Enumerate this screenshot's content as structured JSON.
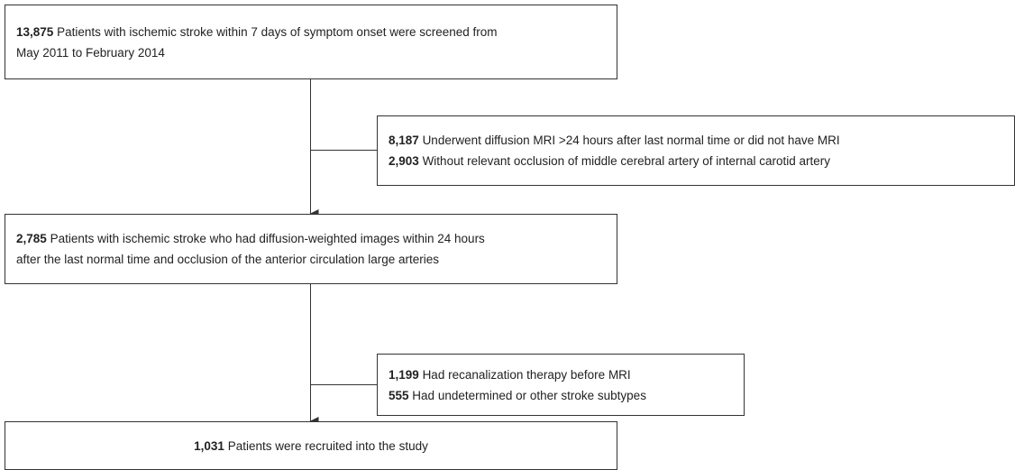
{
  "nodes": [
    {
      "lines": [
        {
          "count": "13,875",
          "text": "Patients with ischemic stroke within 7 days of symptom onset were screened from"
        },
        {
          "text": "May 2011 to February 2014"
        }
      ]
    },
    {
      "lines": [
        {
          "count": "8,187",
          "text": "Underwent diffusion MRI >24 hours after last normal time or did not have MRI"
        },
        {
          "count": "2,903",
          "text": "Without relevant occlusion of middle cerebral artery of internal carotid artery"
        }
      ]
    },
    {
      "lines": [
        {
          "count": "2,785",
          "text": "Patients with ischemic stroke who had diffusion-weighted images within 24 hours"
        },
        {
          "text": "after the last normal time and occlusion of the anterior circulation large arteries"
        }
      ]
    },
    {
      "lines": [
        {
          "count": "1,199",
          "text": "Had recanalization therapy before MRI"
        },
        {
          "count": "555",
          "text": "Had undetermined or other stroke subtypes"
        }
      ]
    },
    {
      "lines": [
        {
          "count": "1,031",
          "text": "Patients were recruited into the study"
        }
      ]
    }
  ]
}
